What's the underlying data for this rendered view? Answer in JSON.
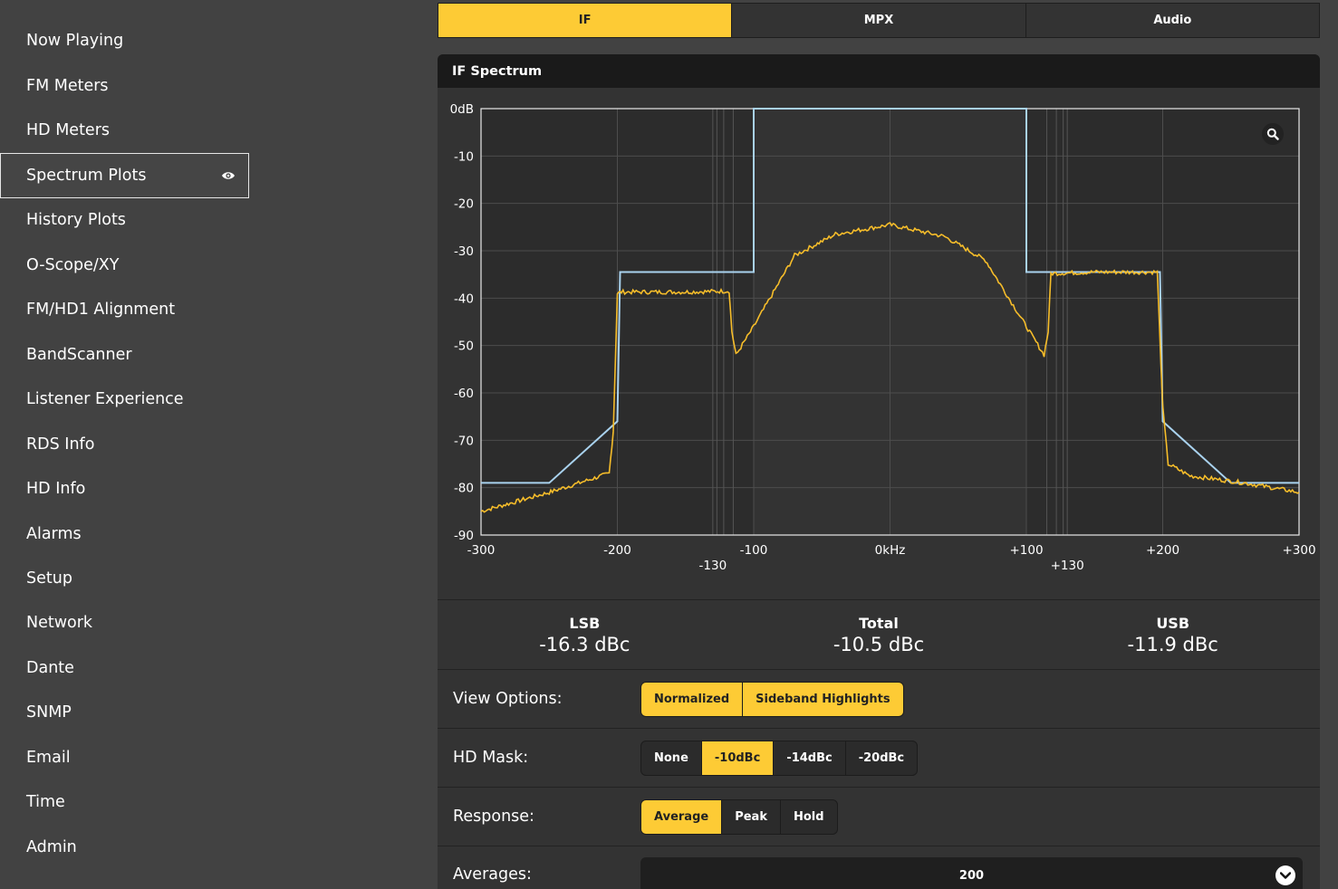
{
  "sidebar": {
    "items": [
      {
        "label": "Now Playing"
      },
      {
        "label": "FM Meters"
      },
      {
        "label": "HD Meters"
      },
      {
        "label": "Spectrum Plots",
        "active": true,
        "icon": "eye-icon"
      },
      {
        "label": "History Plots"
      },
      {
        "label": "O-Scope/XY"
      },
      {
        "label": "FM/HD1 Alignment"
      },
      {
        "label": "BandScanner"
      },
      {
        "label": "Listener Experience"
      },
      {
        "label": "RDS Info"
      },
      {
        "label": "HD Info"
      },
      {
        "label": "Alarms"
      },
      {
        "label": "Setup"
      },
      {
        "label": "Network"
      },
      {
        "label": "Dante"
      },
      {
        "label": "SNMP"
      },
      {
        "label": "Email"
      },
      {
        "label": "Time"
      },
      {
        "label": "Admin"
      }
    ]
  },
  "tabs": [
    {
      "label": "IF",
      "active": true
    },
    {
      "label": "MPX"
    },
    {
      "label": "Audio"
    }
  ],
  "panel": {
    "title": "IF Spectrum",
    "zoom_icon": "search-icon"
  },
  "colors": {
    "accent": "#fdcb35",
    "mask": "#a9d2ee",
    "trace": "#f6bd2a"
  },
  "chart_data": {
    "type": "line",
    "ylim": [
      -90,
      0
    ],
    "xlim": [
      -300,
      300
    ],
    "y_ticks": [
      "0dB",
      "-10",
      "-20",
      "-30",
      "-40",
      "-50",
      "-60",
      "-70",
      "-80",
      "-90"
    ],
    "x_ticks": [
      "-300",
      "-200",
      "-100",
      "0kHz",
      "+100",
      "+200",
      "+300"
    ],
    "x_ticks_secondary": [
      "-130",
      "+130"
    ],
    "series": [
      {
        "role": "mask",
        "x": [
          -300,
          -250,
          -200,
          -198,
          -100,
          -100,
          100,
          100,
          198,
          200,
          250,
          300
        ],
        "y": [
          -79,
          -79,
          -66,
          -34.5,
          -34.5,
          0,
          0,
          -34.5,
          -34.5,
          -66,
          -79,
          -79
        ]
      },
      {
        "role": "spectrum",
        "x": [
          -300,
          -250,
          -206,
          -203,
          -200,
          -197,
          -150,
          -118,
          -116,
          -113,
          -100,
          -70,
          -40,
          0,
          40,
          70,
          100,
          113,
          116,
          118,
          150,
          196,
          200,
          204,
          220,
          260,
          300
        ],
        "y": [
          -85,
          -81,
          -77,
          -68,
          -39,
          -38.7,
          -38.7,
          -38.5,
          -47,
          -52,
          -46,
          -31,
          -26.5,
          -24.5,
          -27,
          -32,
          -46,
          -52,
          -47,
          -34.8,
          -34.5,
          -34.5,
          -63,
          -75,
          -77.5,
          -79,
          -81
        ]
      }
    ]
  },
  "stats": [
    {
      "label": "LSB",
      "value": "-16.3 dBc"
    },
    {
      "label": "Total",
      "value": "-10.5 dBc"
    },
    {
      "label": "USB",
      "value": "-11.9 dBc"
    }
  ],
  "options": {
    "view": {
      "label": "View Options:",
      "buttons": [
        {
          "label": "Normalized",
          "on": true
        },
        {
          "label": "Sideband Highlights",
          "on": true
        }
      ]
    },
    "mask": {
      "label": "HD Mask:",
      "buttons": [
        {
          "label": "None"
        },
        {
          "label": "-10dBc",
          "on": true
        },
        {
          "label": "-14dBc"
        },
        {
          "label": "-20dBc"
        }
      ]
    },
    "response": {
      "label": "Response:",
      "buttons": [
        {
          "label": "Average",
          "on": true
        },
        {
          "label": "Peak"
        },
        {
          "label": "Hold"
        }
      ]
    },
    "averages": {
      "label": "Averages:",
      "value": "200",
      "icon": "chevron-down-icon"
    }
  }
}
